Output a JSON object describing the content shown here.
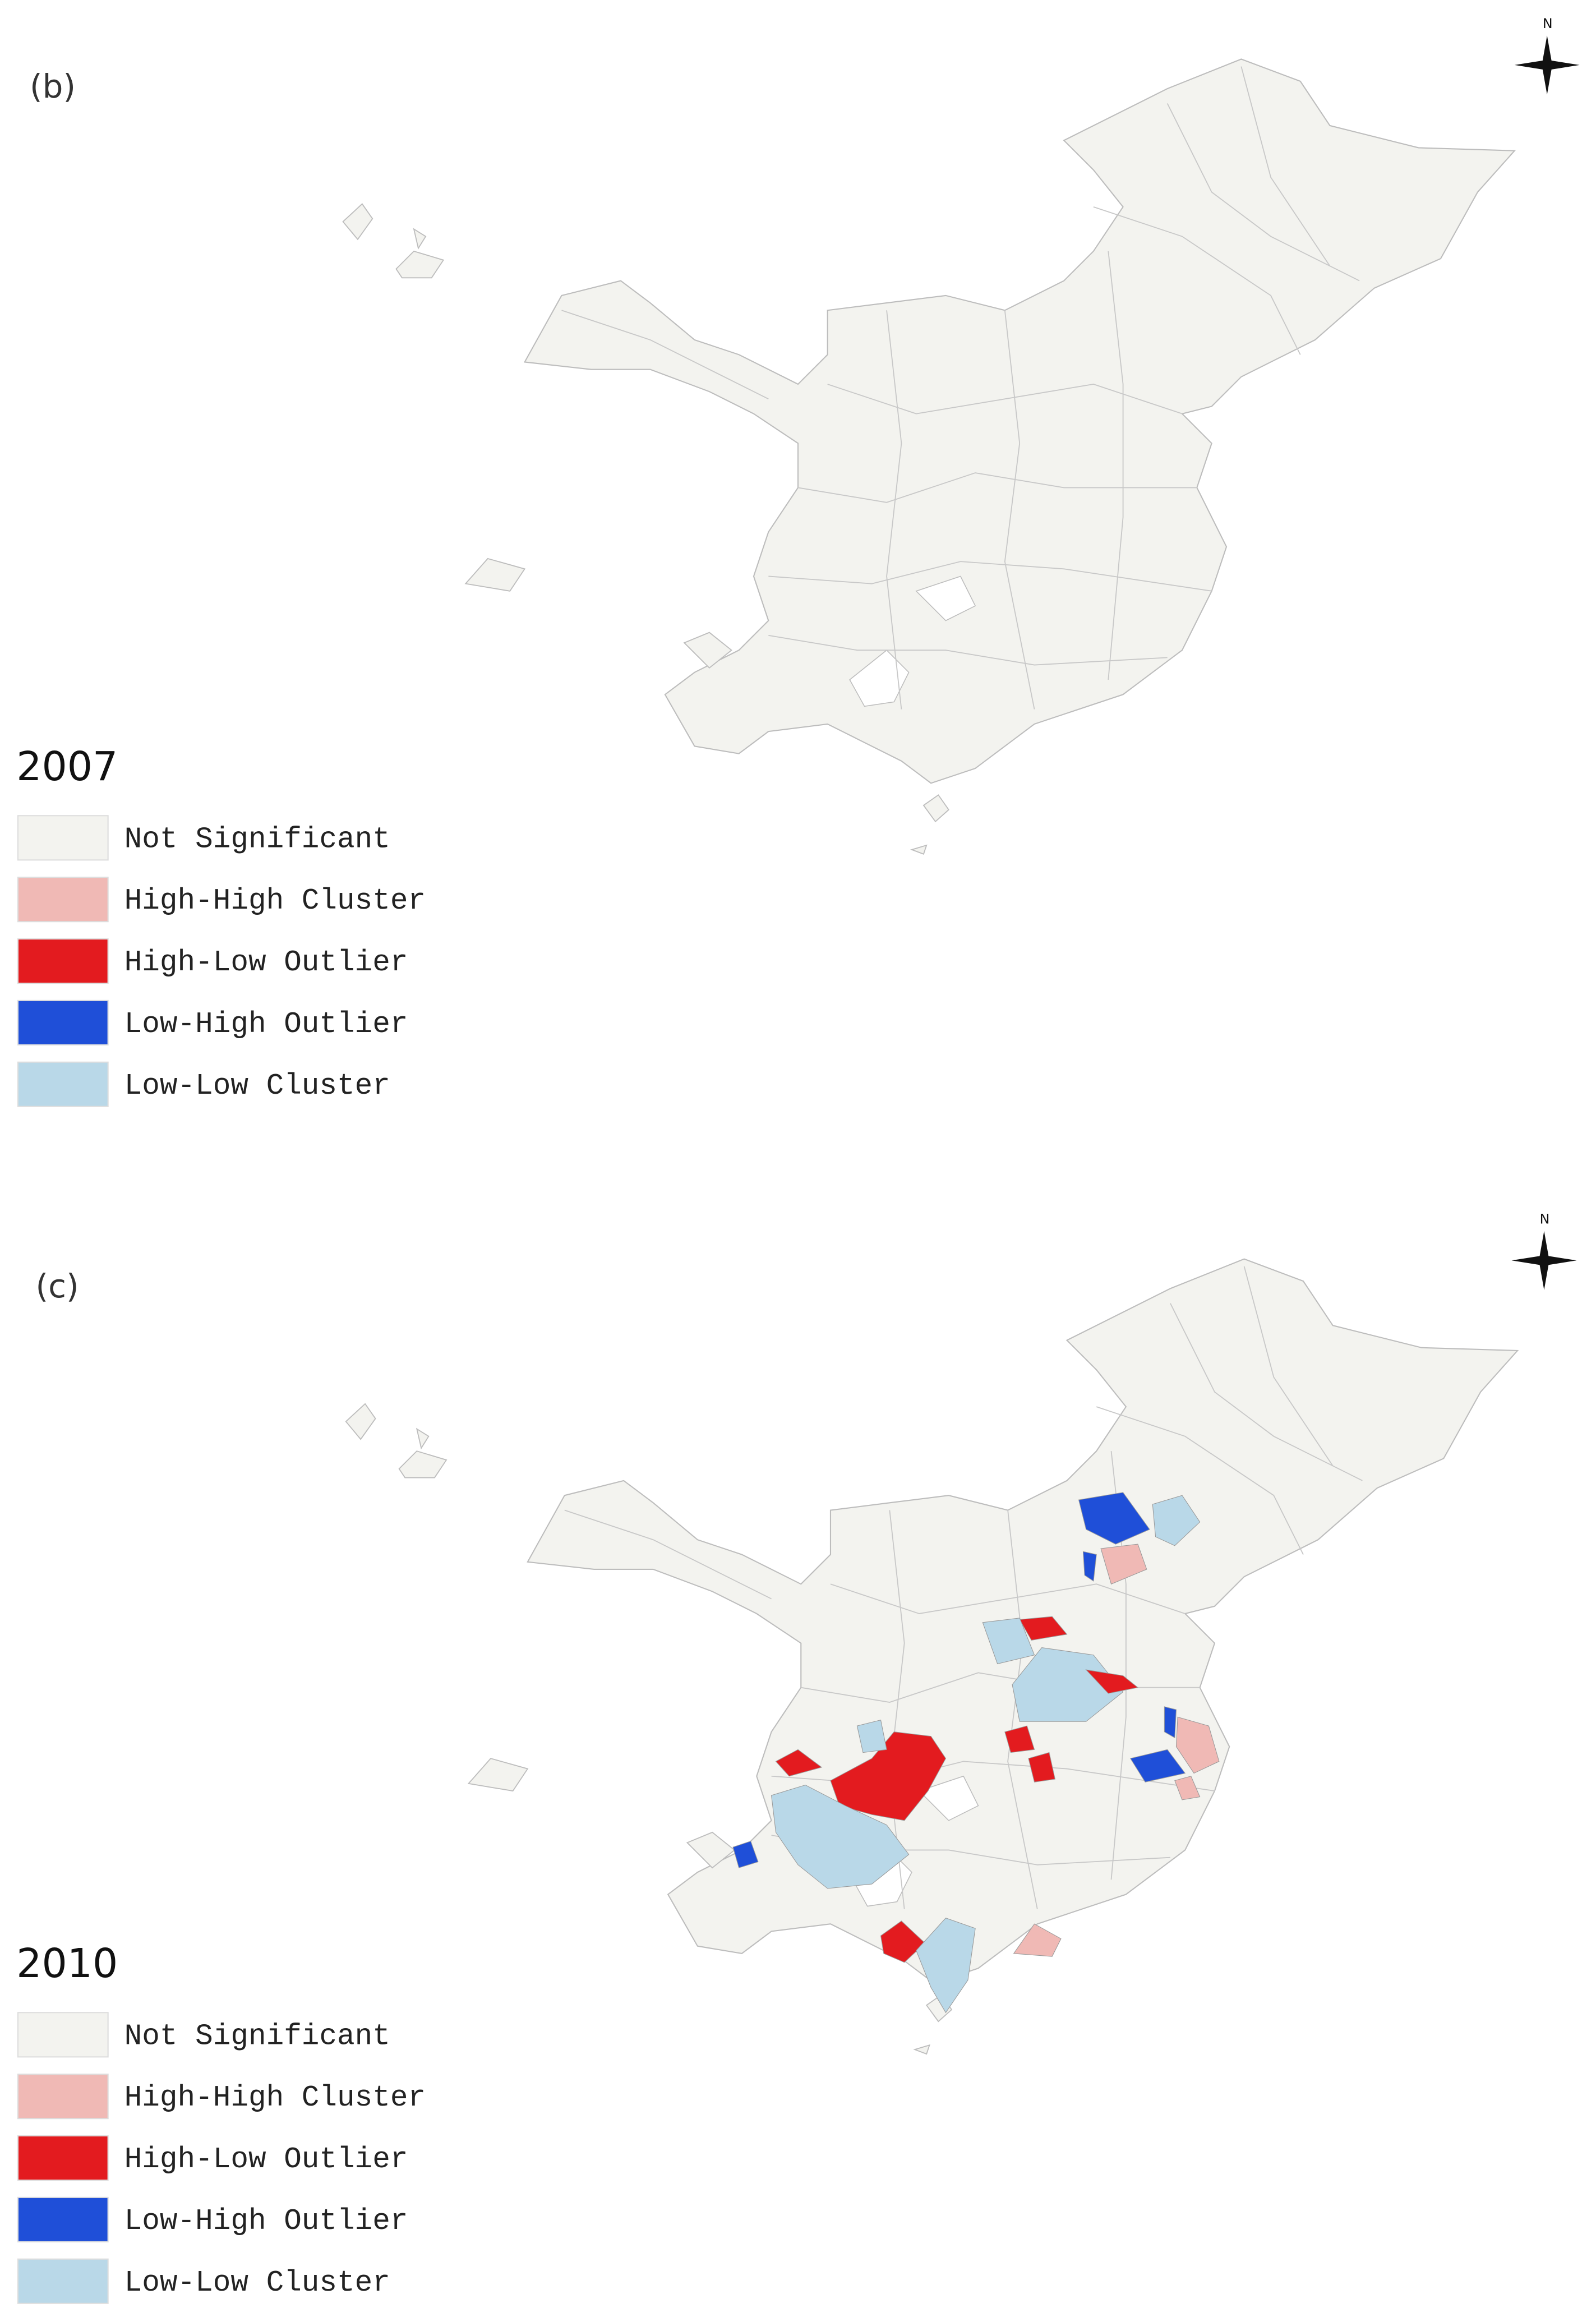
{
  "panels": [
    {
      "label": "(b)",
      "year": "2007",
      "compass": "N",
      "legend": [
        {
          "name": "Not Significant",
          "color": "#f3f3ef"
        },
        {
          "name": "High-High Cluster",
          "color": "#f0b9b5"
        },
        {
          "name": "High-Low Outlier",
          "color": "#e31b1f"
        },
        {
          "name": "Low-High Outlier",
          "color": "#1f4fd8"
        },
        {
          "name": "Low-Low Cluster",
          "color": "#b9d8e8"
        }
      ]
    },
    {
      "label": "(c)",
      "year": "2010",
      "compass": "N",
      "legend": [
        {
          "name": "Not Significant",
          "color": "#f3f3ef"
        },
        {
          "name": "High-High Cluster",
          "color": "#f0b9b5"
        },
        {
          "name": "High-Low Outlier",
          "color": "#e31b1f"
        },
        {
          "name": "Low-High Outlier",
          "color": "#1f4fd8"
        },
        {
          "name": "Low-Low Cluster",
          "color": "#b9d8e8"
        }
      ]
    }
  ]
}
